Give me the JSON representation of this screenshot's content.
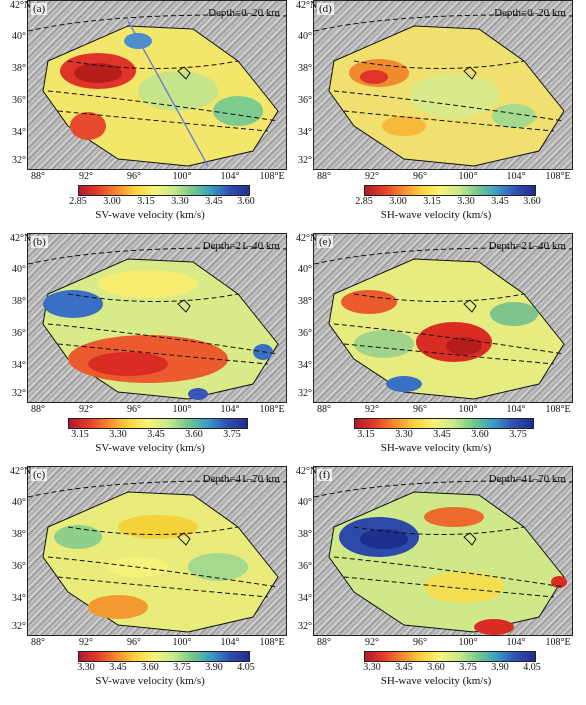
{
  "lat_labels": [
    "42°N",
    "40°",
    "38°",
    "36°",
    "34°",
    "32°"
  ],
  "lon_labels": [
    "88°",
    "92°",
    "96°",
    "100°",
    "104°",
    "108°E"
  ],
  "panels": [
    {
      "label": "(a)",
      "depth": "Depth=0–20 km",
      "cbar_title": "SV-wave velocity (km/s)",
      "ticks": [
        "2.85",
        "3.00",
        "3.15",
        "3.30",
        "3.45",
        "3.60"
      ]
    },
    {
      "label": "(d)",
      "depth": "Depth=0–20 km",
      "cbar_title": "SH-wave velocity (km/s)",
      "ticks": [
        "2.85",
        "3.00",
        "3.15",
        "3.30",
        "3.45",
        "3.60"
      ]
    },
    {
      "label": "(b)",
      "depth": "Depth=21–40 km",
      "cbar_title": "SV-wave velocity (km/s)",
      "ticks": [
        "3.15",
        "3.30",
        "3.45",
        "3.60",
        "3.75"
      ]
    },
    {
      "label": "(e)",
      "depth": "Depth=21–40 km",
      "cbar_title": "SH-wave velocity (km/s)",
      "ticks": [
        "3.15",
        "3.30",
        "3.45",
        "3.60",
        "3.75"
      ]
    },
    {
      "label": "(c)",
      "depth": "Depth=41–70 km",
      "cbar_title": "SV-wave velocity (km/s)",
      "ticks": [
        "3.30",
        "3.45",
        "3.60",
        "3.75",
        "3.90",
        "4.05"
      ]
    },
    {
      "label": "(f)",
      "depth": "Depth=41–70 km",
      "cbar_title": "SH-wave velocity (km/s)",
      "ticks": [
        "3.30",
        "3.45",
        "3.60",
        "3.75",
        "3.90",
        "4.05"
      ]
    }
  ],
  "colors": {
    "low": "#d7191c",
    "mid": "#f7f37a",
    "high": "#2c3e9e"
  }
}
